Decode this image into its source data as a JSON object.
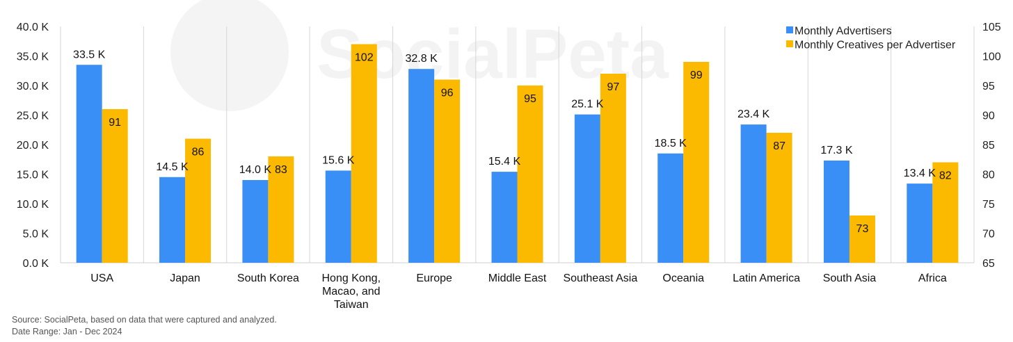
{
  "watermark": "SocialPeta",
  "footer": {
    "source": "Source: SocialPeta, based on data that were captured and analyzed.",
    "date_range": "Date Range: Jan - Dec 2024"
  },
  "colors": {
    "advertisers": "#3a8ff7",
    "creatives": "#fbb900"
  },
  "chart_data": {
    "type": "bar",
    "categories": [
      "USA",
      "Japan",
      "South Korea",
      "Hong Kong, Macao, and Taiwan",
      "Europe",
      "Middle East",
      "Southeast Asia",
      "Oceania",
      "Latin America",
      "South Asia",
      "Africa"
    ],
    "category_lines": [
      [
        "USA"
      ],
      [
        "Japan"
      ],
      [
        "South Korea"
      ],
      [
        "Hong Kong,",
        "Macao, and",
        "Taiwan"
      ],
      [
        "Europe"
      ],
      [
        "Middle East"
      ],
      [
        "Southeast Asia"
      ],
      [
        "Oceania"
      ],
      [
        "Latin America"
      ],
      [
        "South Asia"
      ],
      [
        "Africa"
      ]
    ],
    "series": [
      {
        "name": "Monthly Advertisers",
        "axis": "left",
        "unit": "K",
        "values": [
          33.5,
          14.5,
          14.0,
          15.6,
          32.8,
          15.4,
          25.1,
          18.5,
          23.4,
          17.3,
          13.4
        ],
        "labels": [
          "33.5 K",
          "14.5 K",
          "14.0 K",
          "15.6 K",
          "32.8 K",
          "15.4 K",
          "25.1 K",
          "18.5 K",
          "23.4 K",
          "17.3 K",
          "13.4 K"
        ]
      },
      {
        "name": "Monthly Creatives per Advertiser",
        "axis": "right",
        "values": [
          91,
          86,
          83,
          102,
          96,
          95,
          97,
          99,
          87,
          73,
          82
        ],
        "labels": [
          "91",
          "86",
          "83",
          "102",
          "96",
          "95",
          "97",
          "99",
          "87",
          "73",
          "82"
        ]
      }
    ],
    "left_axis": {
      "ylim": [
        0,
        40
      ],
      "ticks": [
        "0.0 K",
        "5.0 K",
        "10.0 K",
        "15.0 K",
        "20.0 K",
        "25.0 K",
        "30.0 K",
        "35.0 K",
        "40.0 K"
      ]
    },
    "right_axis": {
      "ylim": [
        65,
        105
      ],
      "ticks": [
        "65",
        "70",
        "75",
        "80",
        "85",
        "90",
        "95",
        "100",
        "105"
      ]
    },
    "grid": "vertical separators",
    "legend": "top-right"
  }
}
